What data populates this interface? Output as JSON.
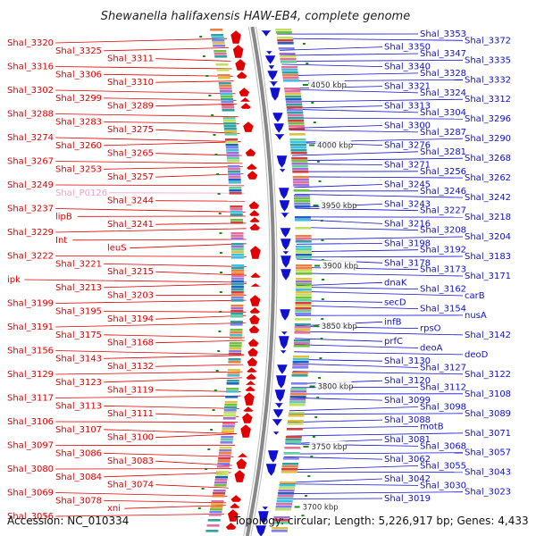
{
  "title": "Shewanella halifaxensis HAW-EB4, complete genome",
  "accession": "Accession: NC_010334",
  "summary": "Topology: circular; Length: 5,226,917 bp; Genes: 4,433",
  "colors": {
    "forward": "#e00000",
    "reverse": "#1010d0",
    "pseudo": "#f0a0c8",
    "backbone": "#888888",
    "tick": "#1a8a1a"
  },
  "kbp_ticks": [
    "4050 kbp",
    "4000 kbp",
    "3950 kbp",
    "3900 kbp",
    "3850 kbp",
    "3800 kbp",
    "3750 kbp",
    "3700 kbp"
  ],
  "forward_labels": [
    "Shal_3320",
    "Shal_3325",
    "Shal_3311",
    "Shal_3316",
    "Shal_3306",
    "Shal_3310",
    "Shal_3302",
    "Shal_3299",
    "Shal_3289",
    "Shal_3288",
    "Shal_3283",
    "Shal_3275",
    "Shal_3274",
    "Shal_3260",
    "Shal_3265",
    "Shal_3267",
    "Shal_3253",
    "Shal_3257",
    "Shal_3249",
    "Shal_P0126",
    "Shal_3244",
    "Shal_3237",
    "lipB",
    "Shal_3241",
    "Shal_3229",
    "Int",
    "leuS",
    "Shal_3222",
    "Shal_3221",
    "Shal_3215",
    "ipk",
    "Shal_3213",
    "Shal_3203",
    "Shal_3199",
    "Shal_3195",
    "Shal_3194",
    "Shal_3191",
    "Shal_3175",
    "Shal_3168",
    "Shal_3156",
    "Shal_3143",
    "Shal_3132",
    "Shal_3129",
    "Shal_3123",
    "Shal_3119",
    "Shal_3117",
    "Shal_3113",
    "Shal_3111",
    "Shal_3106",
    "Shal_3107",
    "Shal_3100",
    "Shal_3097",
    "Shal_3086",
    "Shal_3083",
    "Shal_3080",
    "Shal_3084",
    "Shal_3074",
    "Shal_3069",
    "Shal_3078",
    "xni",
    "Shal_3056"
  ],
  "reverse_labels": [
    "Shal_3353",
    "Shal_3372",
    "Shal_3350",
    "Shal_3347",
    "Shal_3335",
    "Shal_3340",
    "Shal_3328",
    "Shal_3332",
    "Shal_3321",
    "Shal_3324",
    "Shal_3312",
    "Shal_3313",
    "Shal_3304",
    "Shal_3296",
    "Shal_3300",
    "Shal_3287",
    "Shal_3290",
    "Shal_3276",
    "Shal_3281",
    "Shal_3268",
    "Shal_3271",
    "Shal_3256",
    "Shal_3262",
    "Shal_3245",
    "Shal_3246",
    "Shal_3242",
    "Shal_3243",
    "Shal_3227",
    "Shal_3218",
    "Shal_3216",
    "Shal_3208",
    "Shal_3204",
    "Shal_3198",
    "Shal_3192",
    "Shal_3183",
    "Shal_3178",
    "Shal_3173",
    "Shal_3171",
    "dnaK",
    "Shal_3162",
    "carB",
    "secD",
    "Shal_3154",
    "nusA",
    "infB",
    "rpsO",
    "Shal_3142",
    "prfC",
    "deoA",
    "deoD",
    "Shal_3130",
    "Shal_3127",
    "Shal_3122",
    "Shal_3120",
    "Shal_3112",
    "Shal_3108",
    "Shal_3099",
    "Shal_3098",
    "Shal_3089",
    "Shal_3088",
    "motB",
    "Shal_3071",
    "Shal_3081",
    "Shal_3068",
    "Shal_3057",
    "Shal_3062",
    "Shal_3055",
    "Shal_3043",
    "Shal_3042",
    "Shal_3030",
    "Shal_3023",
    "Shal_3019"
  ]
}
